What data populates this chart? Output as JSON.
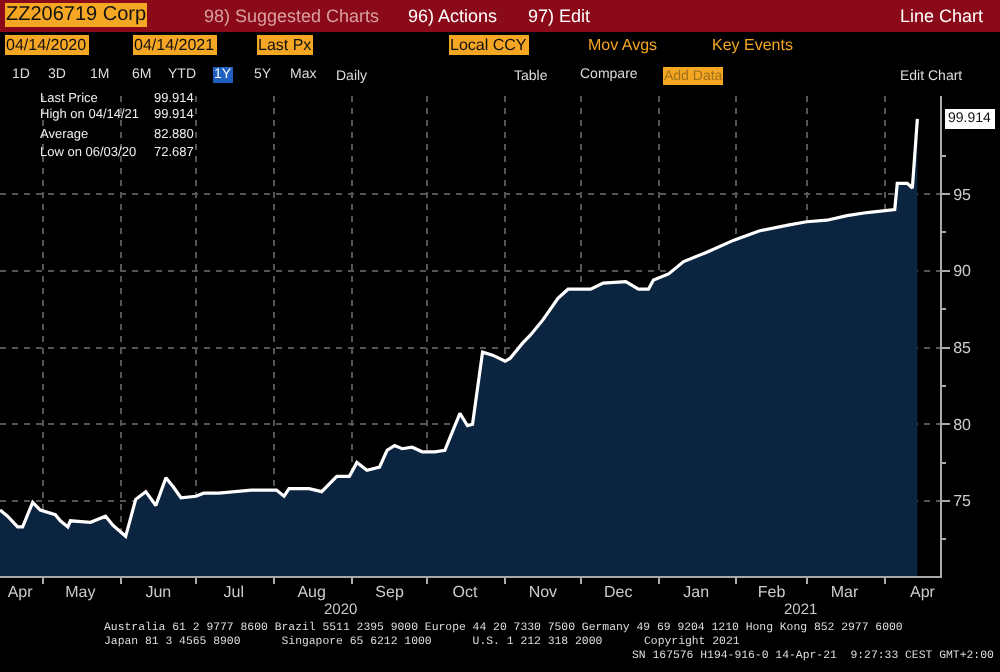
{
  "chart_data": {
    "type": "area",
    "title": "ZZ206719 Corp",
    "x": [
      "2020-04-14",
      "2020-04-17",
      "2020-04-21",
      "2020-04-23",
      "2020-04-27",
      "2020-04-30",
      "2020-05-06",
      "2020-05-08",
      "2020-05-11",
      "2020-05-12",
      "2020-05-20",
      "2020-05-26",
      "2020-05-29",
      "2020-06-03",
      "2020-06-07",
      "2020-06-11",
      "2020-06-15",
      "2020-06-19",
      "2020-06-22",
      "2020-06-25",
      "2020-07-01",
      "2020-07-04",
      "2020-07-10",
      "2020-07-23",
      "2020-08-02",
      "2020-08-05",
      "2020-08-07",
      "2020-08-15",
      "2020-08-20",
      "2020-08-26",
      "2020-08-31",
      "2020-09-03",
      "2020-09-07",
      "2020-09-12",
      "2020-09-15",
      "2020-09-18",
      "2020-09-21",
      "2020-09-25",
      "2020-09-29",
      "2020-10-04",
      "2020-10-08",
      "2020-10-10",
      "2020-10-14",
      "2020-10-17",
      "2020-10-19",
      "2020-10-23",
      "2020-10-27",
      "2020-11-01",
      "2020-11-03",
      "2020-11-08",
      "2020-11-11",
      "2020-11-16",
      "2020-11-22",
      "2020-11-26",
      "2020-12-05",
      "2020-12-10",
      "2020-12-19",
      "2020-12-24",
      "2020-12-28",
      "2020-12-30",
      "2021-01-05",
      "2021-01-11",
      "2021-01-20",
      "2021-01-31",
      "2021-02-10",
      "2021-02-22",
      "2021-03-01",
      "2021-03-09",
      "2021-03-17",
      "2021-03-25",
      "2021-04-05",
      "2021-04-06",
      "2021-04-10",
      "2021-04-12",
      "2021-04-14"
    ],
    "series": [
      {
        "color": "#ffffff",
        "values": [
          74.4,
          74.0,
          73.3,
          73.3,
          74.9,
          74.4,
          74.1,
          73.7,
          73.3,
          73.7,
          73.6,
          74.0,
          73.4,
          72.687,
          75.1,
          75.6,
          74.7,
          76.5,
          75.9,
          75.2,
          75.3,
          75.5,
          75.5,
          75.7,
          75.7,
          75.3,
          75.8,
          75.8,
          75.6,
          76.6,
          76.6,
          77.5,
          77.0,
          77.2,
          78.3,
          78.6,
          78.4,
          78.5,
          78.2,
          78.2,
          78.3,
          79.1,
          80.7,
          79.9,
          80.0,
          84.7,
          84.5,
          84.1,
          84.3,
          85.3,
          85.8,
          86.8,
          88.2,
          88.8,
          88.8,
          89.2,
          89.3,
          88.8,
          88.8,
          89.4,
          89.8,
          90.6,
          91.2,
          92.0,
          92.6,
          93.0,
          93.2,
          93.3,
          93.6,
          93.8,
          94.0,
          95.7,
          95.7,
          95.4,
          99.914
        ]
      }
    ],
    "xlim": [
      "2020-04-14",
      "2021-04-23"
    ],
    "xticks": [
      {
        "value": "2020-04-22",
        "label": "Apr"
      },
      {
        "value": "2020-05-01",
        "label": null
      },
      {
        "value": "2020-05-16",
        "label": "May"
      },
      {
        "value": "2020-06-01",
        "label": null
      },
      {
        "value": "2020-06-16",
        "label": "Jun"
      },
      {
        "value": "2020-07-01",
        "label": null
      },
      {
        "value": "2020-07-16",
        "label": "Jul"
      },
      {
        "value": "2020-08-01",
        "label": null
      },
      {
        "value": "2020-08-16",
        "label": "Aug"
      },
      {
        "value": "2020-09-01",
        "label": null
      },
      {
        "value": "2020-09-16",
        "label": "Sep"
      },
      {
        "value": "2020-10-01",
        "label": null
      },
      {
        "value": "2020-10-16",
        "label": "Oct"
      },
      {
        "value": "2020-11-01",
        "label": null
      },
      {
        "value": "2020-11-16",
        "label": "Nov"
      },
      {
        "value": "2020-12-01",
        "label": null
      },
      {
        "value": "2020-12-16",
        "label": "Dec"
      },
      {
        "value": "2021-01-01",
        "label": null
      },
      {
        "value": "2021-01-16",
        "label": "Jan"
      },
      {
        "value": "2021-02-01",
        "label": null
      },
      {
        "value": "2021-02-15",
        "label": "Feb"
      },
      {
        "value": "2021-03-01",
        "label": null
      },
      {
        "value": "2021-03-16",
        "label": "Mar"
      },
      {
        "value": "2021-04-01",
        "label": null
      },
      {
        "value": "2021-04-16",
        "label": "Apr"
      }
    ],
    "ylim": [
      70.1,
      101.4
    ],
    "yticks": [
      {
        "value": 72.5,
        "label": null
      },
      75,
      {
        "value": 77.5,
        "label": null
      },
      80,
      {
        "value": 82.5,
        "label": null
      },
      85,
      {
        "value": 87.5,
        "label": null
      },
      90,
      {
        "value": 92.5,
        "label": null
      },
      95,
      {
        "value": 97.5,
        "label": null
      }
    ],
    "grid": true,
    "line_style": "solid",
    "annotations": [
      "98) Suggested Charts",
      "96) Actions",
      "97) Edit",
      "Line Chart",
      "04/14/2020",
      "04/14/2021",
      "Last Px",
      "Local CCY",
      "Mov Avgs",
      "Key Events",
      "1D",
      "3D",
      "1M",
      "6M",
      "YTD",
      "1Y",
      "5Y",
      "Max",
      "Daily",
      "Table",
      "Compare",
      "Add Data",
      "Edit Chart",
      "Last Price",
      "99.914",
      "High on 04/14/21",
      "99.914",
      "Average",
      "82.880",
      "Low on 06/03/20",
      "72.687",
      "2020",
      "2021",
      "Australia 61 2 9777 8600 Brazil 5511 2395 9000 Europe 44 20 7330 7500 Germany 49 69 9204 1210 Hong Kong 852 2977 6000",
      "Japan 81 3 4565 8900      Singapore 65 6212 1000      U.S. 1 212 318 2000",
      "Copyright 2021",
      "SN 167576 H194-916-0 14-Apr-21  9:27:33 CEST GMT+2:00",
      {
        "text": "99.914",
        "x": "2021-04-14",
        "y": 99.914
      }
    ]
  }
}
